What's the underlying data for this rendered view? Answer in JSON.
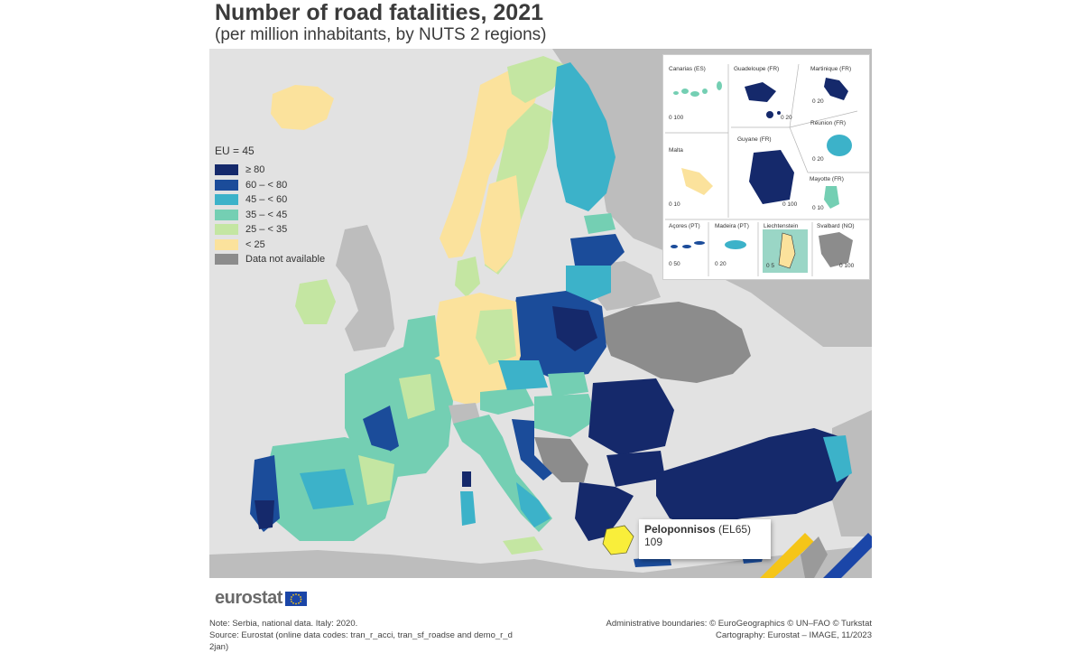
{
  "header": {
    "title": "Number of road fatalities, 2021",
    "subtitle": "(per million inhabitants, by NUTS 2 regions)"
  },
  "legend": {
    "eu_average": "EU = 45",
    "classes": [
      {
        "label": "≥ 80",
        "color": "#15296b"
      },
      {
        "label": "60 – < 80",
        "color": "#1b4c9a"
      },
      {
        "label": "45 – < 60",
        "color": "#3cb2c9"
      },
      {
        "label": "35 – < 45",
        "color": "#74cfb3"
      },
      {
        "label": "25 – < 35",
        "color": "#c4e6a2"
      },
      {
        "label": "< 25",
        "color": "#fbe29c"
      },
      {
        "label": "Data not available",
        "color": "#8c8c8c"
      }
    ]
  },
  "colors": {
    "non_eu_land": "#bdbdbd",
    "sea": "#e2e2e2",
    "highlight": "#f9ee3a",
    "accent_yellow": "#f5c518",
    "accent_blue": "#1b46a8"
  },
  "insets": {
    "canarias": {
      "label": "Canarias (ES)",
      "scale": "0   100"
    },
    "guadeloupe": {
      "label": "Guadeloupe (FR)",
      "scale": "0   20"
    },
    "martinique": {
      "label": "Martinique (FR)",
      "scale": "0   20"
    },
    "reunion": {
      "label": "Réunion (FR)",
      "scale": "0   20"
    },
    "malta": {
      "label": "Malta",
      "scale": "0   10"
    },
    "guyane": {
      "label": "Guyane (FR)",
      "scale": "0   100"
    },
    "mayotte": {
      "label": "Mayotte (FR)",
      "scale": "0   10"
    },
    "acores": {
      "label": "Açores (PT)",
      "scale": "0   50"
    },
    "madeira": {
      "label": "Madeira (PT)",
      "scale": "0   20"
    },
    "liechtenstein": {
      "label": "Liechtenstein",
      "scale": "0   5"
    },
    "svalbard": {
      "label": "Svalbard (NO)",
      "scale": "0   100"
    }
  },
  "callout": {
    "region": "Peloponnisos",
    "code": "(EL65)",
    "value": "109"
  },
  "brand": {
    "logo": "eurostat"
  },
  "footer": {
    "note": "Note: Serbia, national data. Italy: 2020.",
    "source": "Source: Eurostat (online data codes: tran_r_acci, tran_sf_roadse and demo_r_d",
    "source_cont": "2jan)",
    "boundaries": "Administrative boundaries: © EuroGeographics © UN–FAO © Turkstat",
    "cartography": "Cartography: Eurostat – IMAGE, 11/2023"
  }
}
